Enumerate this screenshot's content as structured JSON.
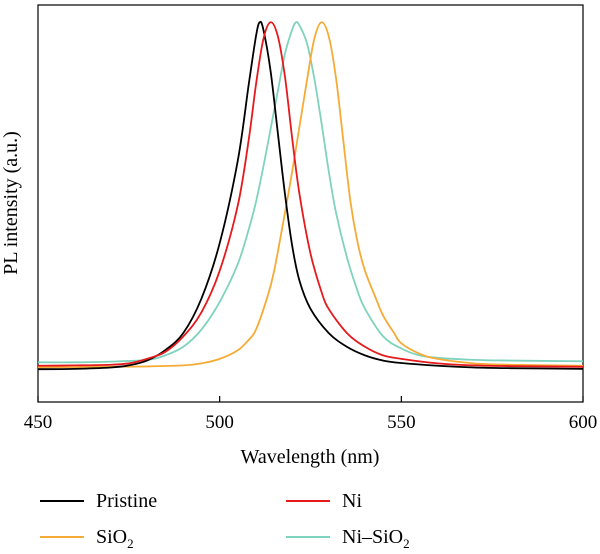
{
  "chart_data": {
    "type": "line",
    "title": "",
    "xlabel": "Wavelength (nm)",
    "ylabel": "PL intensity (a.u.)",
    "xlim": [
      450,
      600
    ],
    "ylim": [
      -0.1,
      1.05
    ],
    "x_ticks": [
      450,
      500,
      550,
      600
    ],
    "x_tick_labels": [
      "450",
      "500",
      "550",
      "600"
    ],
    "y_ticks_labeled": false,
    "grid": false,
    "legend": {
      "placement": "bottom",
      "columns": 2
    },
    "series": [
      {
        "name": "Pristine",
        "color": "#000000",
        "points": [
          [
            450,
            -0.005
          ],
          [
            460,
            -0.004
          ],
          [
            470,
            0.0
          ],
          [
            475,
            0.006
          ],
          [
            480,
            0.02
          ],
          [
            485,
            0.05
          ],
          [
            490,
            0.1
          ],
          [
            495,
            0.2
          ],
          [
            500,
            0.36
          ],
          [
            505,
            0.6
          ],
          [
            508,
            0.82
          ],
          [
            510,
            0.96
          ],
          [
            511,
            1.0
          ],
          [
            512,
            0.98
          ],
          [
            514,
            0.86
          ],
          [
            516,
            0.68
          ],
          [
            518,
            0.5
          ],
          [
            520,
            0.35
          ],
          [
            522,
            0.25
          ],
          [
            525,
            0.17
          ],
          [
            530,
            0.1
          ],
          [
            535,
            0.06
          ],
          [
            540,
            0.035
          ],
          [
            545,
            0.02
          ],
          [
            550,
            0.013
          ],
          [
            560,
            0.005
          ],
          [
            570,
            0.0
          ],
          [
            580,
            -0.002
          ],
          [
            600,
            -0.004
          ]
        ]
      },
      {
        "name": "Ni",
        "color": "#e41a1c",
        "points": [
          [
            450,
            0.005
          ],
          [
            460,
            0.006
          ],
          [
            470,
            0.008
          ],
          [
            475,
            0.012
          ],
          [
            480,
            0.025
          ],
          [
            485,
            0.045
          ],
          [
            490,
            0.09
          ],
          [
            495,
            0.16
          ],
          [
            500,
            0.28
          ],
          [
            505,
            0.47
          ],
          [
            508,
            0.66
          ],
          [
            510,
            0.82
          ],
          [
            512,
            0.95
          ],
          [
            514,
            1.0
          ],
          [
            516,
            0.96
          ],
          [
            518,
            0.84
          ],
          [
            520,
            0.66
          ],
          [
            522,
            0.5
          ],
          [
            525,
            0.33
          ],
          [
            528,
            0.22
          ],
          [
            530,
            0.17
          ],
          [
            535,
            0.1
          ],
          [
            540,
            0.06
          ],
          [
            545,
            0.035
          ],
          [
            550,
            0.025
          ],
          [
            560,
            0.012
          ],
          [
            570,
            0.006
          ],
          [
            580,
            0.004
          ],
          [
            600,
            0.002
          ]
        ]
      },
      {
        "name": "SiO2",
        "display_name": "SiO₂",
        "color": "#f5ab35",
        "points": [
          [
            450,
            0.0
          ],
          [
            470,
            0.002
          ],
          [
            480,
            0.003
          ],
          [
            490,
            0.006
          ],
          [
            495,
            0.012
          ],
          [
            500,
            0.025
          ],
          [
            505,
            0.05
          ],
          [
            508,
            0.08
          ],
          [
            510,
            0.11
          ],
          [
            513,
            0.2
          ],
          [
            515,
            0.28
          ],
          [
            518,
            0.45
          ],
          [
            520,
            0.57
          ],
          [
            522,
            0.7
          ],
          [
            524,
            0.83
          ],
          [
            526,
            0.95
          ],
          [
            528,
            1.0
          ],
          [
            530,
            0.96
          ],
          [
            532,
            0.84
          ],
          [
            534,
            0.66
          ],
          [
            536,
            0.48
          ],
          [
            538,
            0.36
          ],
          [
            540,
            0.28
          ],
          [
            543,
            0.2
          ],
          [
            545,
            0.15
          ],
          [
            548,
            0.1
          ],
          [
            550,
            0.07
          ],
          [
            555,
            0.04
          ],
          [
            560,
            0.025
          ],
          [
            570,
            0.012
          ],
          [
            580,
            0.008
          ],
          [
            600,
            0.005
          ]
        ]
      },
      {
        "name": "Ni-SiO2",
        "display_name": "Ni–SiO₂",
        "color": "#7fd3bd",
        "points": [
          [
            450,
            0.015
          ],
          [
            460,
            0.015
          ],
          [
            470,
            0.017
          ],
          [
            480,
            0.022
          ],
          [
            485,
            0.035
          ],
          [
            490,
            0.06
          ],
          [
            495,
            0.11
          ],
          [
            500,
            0.19
          ],
          [
            505,
            0.3
          ],
          [
            508,
            0.4
          ],
          [
            510,
            0.48
          ],
          [
            512,
            0.58
          ],
          [
            514,
            0.69
          ],
          [
            516,
            0.8
          ],
          [
            518,
            0.91
          ],
          [
            520,
            0.98
          ],
          [
            521,
            1.0
          ],
          [
            522,
            0.99
          ],
          [
            524,
            0.94
          ],
          [
            526,
            0.84
          ],
          [
            528,
            0.71
          ],
          [
            530,
            0.57
          ],
          [
            532,
            0.45
          ],
          [
            535,
            0.32
          ],
          [
            538,
            0.22
          ],
          [
            540,
            0.17
          ],
          [
            545,
            0.09
          ],
          [
            550,
            0.055
          ],
          [
            555,
            0.035
          ],
          [
            560,
            0.028
          ],
          [
            570,
            0.022
          ],
          [
            580,
            0.02
          ],
          [
            600,
            0.018
          ]
        ]
      }
    ]
  }
}
